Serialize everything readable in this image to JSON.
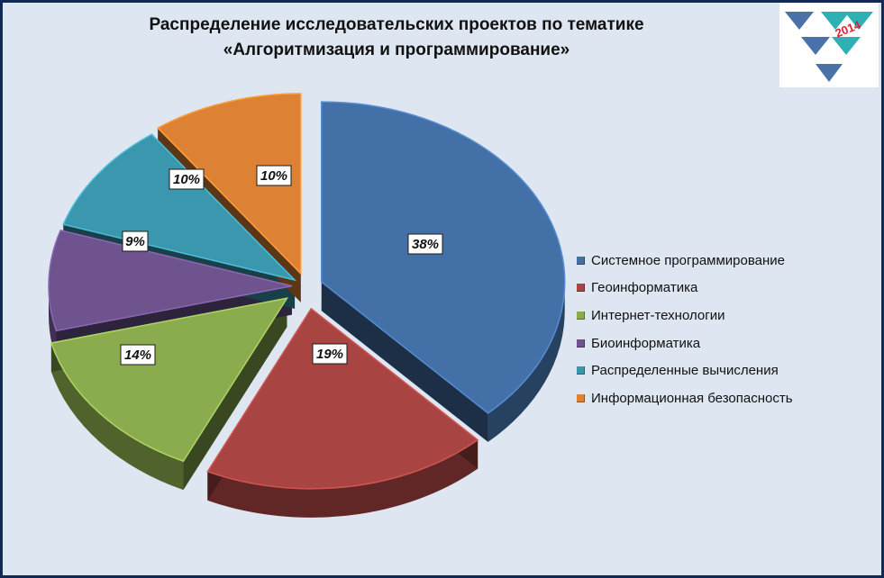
{
  "chart_data": {
    "type": "pie",
    "title_lines": [
      "Распределение исследовательских проектов по тематике",
      "«Алгоритмизация и программирование»"
    ],
    "slices": [
      {
        "label": "Системное программирование",
        "value": 38,
        "value_label": "38%",
        "color": "#4470a8"
      },
      {
        "label": "Геоинформатика",
        "value": 19,
        "value_label": "19%",
        "color": "#a84442"
      },
      {
        "label": "Интернет-технологии",
        "value": 14,
        "value_label": "14%",
        "color": "#8aab4e"
      },
      {
        "label": "Биоинформатика",
        "value": 9,
        "value_label": "9%",
        "color": "#6e538e"
      },
      {
        "label": "Распределенные вычисления",
        "value": 10,
        "value_label": "10%",
        "color": "#3b97ae"
      },
      {
        "label": "Информационная безопасность",
        "value": 10,
        "value_label": "10%",
        "color": "#dd8134"
      }
    ],
    "legend_position": "right",
    "exploded": true,
    "style": "3d"
  },
  "logo": {
    "text": "2014",
    "accent_color": "#e02030",
    "primary_color": "#4a72a8",
    "secondary_color": "#2eb0b4"
  }
}
